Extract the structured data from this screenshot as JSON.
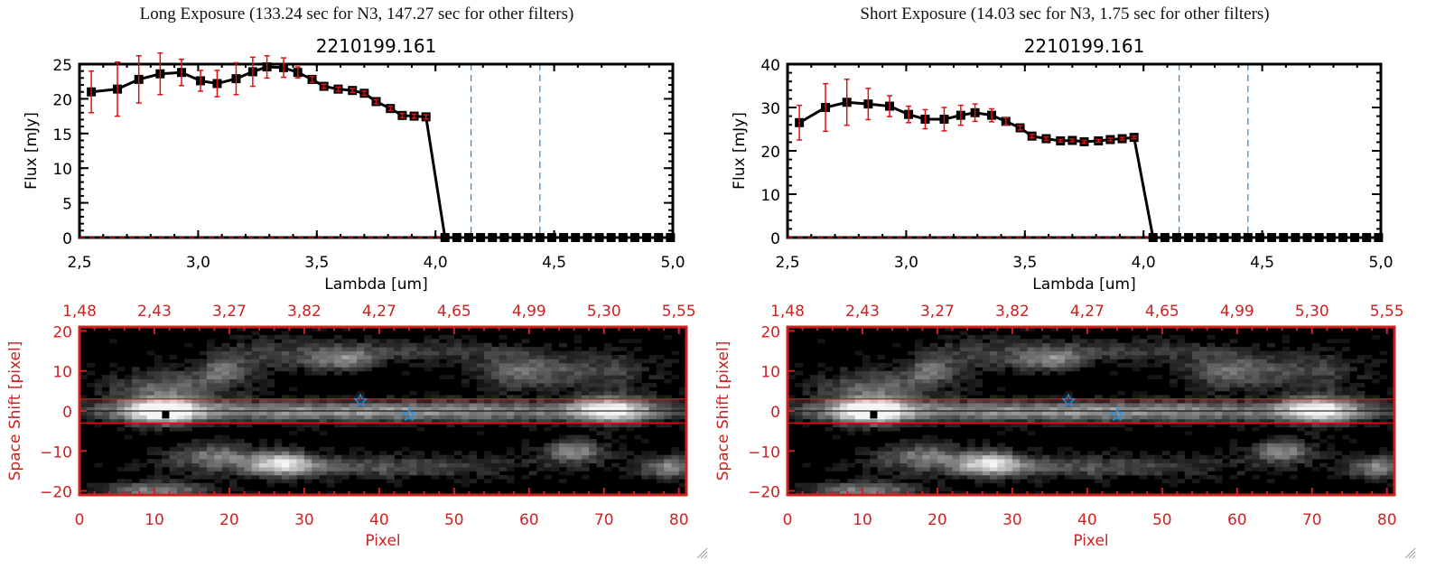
{
  "panels": [
    {
      "exposure_title": "Long Exposure (133.24 sec for N3, 147.27 sec for other filters)",
      "chart_data": [
        {
          "type": "line",
          "title": "2210199.161",
          "xlabel": "Lambda [um]",
          "ylabel": "Flux [mJy]",
          "xlim": [
            2.5,
            5.0
          ],
          "ylim": [
            0,
            25
          ],
          "xticks": [
            2.5,
            3.0,
            3.5,
            4.0,
            4.5,
            5.0
          ],
          "xtick_labels": [
            "2,5",
            "3,0",
            "3,5",
            "4,0",
            "4,5",
            "5,0"
          ],
          "yticks": [
            0,
            5,
            10,
            15,
            20,
            25
          ],
          "ytick_labels": [
            "0",
            "5",
            "10",
            "15",
            "20",
            "25"
          ],
          "series": [
            {
              "name": "flux",
              "x": [
                2.55,
                2.66,
                2.75,
                2.84,
                2.93,
                3.01,
                3.08,
                3.16,
                3.23,
                3.29,
                3.36,
                3.42,
                3.48,
                3.53,
                3.59,
                3.65,
                3.7,
                3.75,
                3.81,
                3.86,
                3.91,
                3.96,
                4.04,
                4.09,
                4.14,
                4.19,
                4.24,
                4.29,
                4.34,
                4.39,
                4.44,
                4.49,
                4.54,
                4.59,
                4.64,
                4.69,
                4.74,
                4.79,
                4.84,
                4.89,
                4.94,
                4.99
              ],
              "y": [
                21.0,
                21.4,
                22.8,
                23.6,
                23.8,
                22.6,
                22.2,
                22.9,
                23.9,
                24.6,
                24.5,
                23.8,
                22.8,
                21.8,
                21.4,
                21.2,
                20.8,
                19.6,
                18.6,
                17.6,
                17.5,
                17.4,
                0,
                0,
                0,
                0,
                0,
                0,
                0,
                0,
                0,
                0,
                0,
                0,
                0,
                0,
                0,
                0,
                0,
                0,
                0,
                0
              ],
              "yerr": [
                3.0,
                3.9,
                3.4,
                3.0,
                1.9,
                1.5,
                1.9,
                2.3,
                2.1,
                1.6,
                1.4,
                0.8,
                0.4,
                0.3,
                0.3,
                0.3,
                0.3,
                0.3,
                0.3,
                0.3,
                0.3,
                0.3,
                0,
                0,
                0,
                0,
                0,
                0,
                0,
                0,
                0,
                0,
                0,
                0,
                0,
                0,
                0,
                0,
                0,
                0,
                0,
                0
              ]
            }
          ],
          "vlines": [
            4.15,
            4.44
          ],
          "hline": 0,
          "colors": {
            "line": "#000000",
            "errorbar": "#e01010",
            "vline": "#2b8fe0",
            "hline": "#e01010"
          }
        },
        {
          "type": "heatmap",
          "xlabel": "Pixel",
          "ylabel": "Space Shift [pixel]",
          "xlim": [
            0,
            81
          ],
          "ylim": [
            -21,
            21
          ],
          "xticks": [
            0,
            10,
            20,
            30,
            40,
            50,
            60,
            70,
            80
          ],
          "xtick_labels": [
            "0",
            "10",
            "20",
            "30",
            "40",
            "50",
            "60",
            "70",
            "80"
          ],
          "yticks": [
            -20,
            -10,
            0,
            10,
            20
          ],
          "ytick_labels": [
            "−20",
            "−10",
            "0",
            "10",
            "20"
          ],
          "top_tick_labels": [
            "1,48",
            "2,43",
            "3,27",
            "3,82",
            "4,27",
            "4,65",
            "4,99",
            "5,30",
            "5,55"
          ],
          "aperture_lines": [
            3,
            -3
          ],
          "center_line": 0,
          "peak_marker": [
            11.5,
            -1
          ],
          "stars": [
            [
              37.5,
              2.5
            ],
            [
              44,
              -1
            ]
          ],
          "colors": {
            "axis": "#cc2222",
            "aperture": "#e01010",
            "star": "#2b8fe0"
          }
        }
      ]
    },
    {
      "exposure_title": "Short Exposure (14.03 sec for N3, 1.75 sec for other filters)",
      "chart_data": [
        {
          "type": "line",
          "title": "2210199.161",
          "xlabel": "Lambda [um]",
          "ylabel": "Flux [mJy]",
          "xlim": [
            2.5,
            5.0
          ],
          "ylim": [
            0,
            40
          ],
          "xticks": [
            2.5,
            3.0,
            3.5,
            4.0,
            4.5,
            5.0
          ],
          "xtick_labels": [
            "2,5",
            "3,0",
            "3,5",
            "4,0",
            "4,5",
            "5,0"
          ],
          "yticks": [
            0,
            10,
            20,
            30,
            40
          ],
          "ytick_labels": [
            "0",
            "10",
            "20",
            "30",
            "40"
          ],
          "series": [
            {
              "name": "flux",
              "x": [
                2.55,
                2.66,
                2.75,
                2.84,
                2.93,
                3.01,
                3.08,
                3.16,
                3.23,
                3.29,
                3.36,
                3.42,
                3.48,
                3.53,
                3.59,
                3.65,
                3.7,
                3.75,
                3.81,
                3.86,
                3.91,
                3.96,
                4.04,
                4.09,
                4.14,
                4.19,
                4.24,
                4.29,
                4.34,
                4.39,
                4.44,
                4.49,
                4.54,
                4.59,
                4.64,
                4.69,
                4.74,
                4.79,
                4.84,
                4.89,
                4.94,
                4.99
              ],
              "y": [
                26.5,
                30.0,
                31.2,
                30.8,
                30.3,
                28.4,
                27.3,
                27.3,
                28.2,
                28.8,
                28.2,
                26.8,
                25.3,
                23.4,
                22.8,
                22.3,
                22.4,
                22.1,
                22.3,
                22.6,
                22.8,
                23.1,
                0,
                0,
                0,
                0,
                0,
                0,
                0,
                0,
                0,
                0,
                0,
                0,
                0,
                0,
                0,
                0,
                0,
                0,
                0,
                0
              ],
              "yerr": [
                4.0,
                5.5,
                5.3,
                3.6,
                2.4,
                1.9,
                2.2,
                2.7,
                2.3,
                2.0,
                1.5,
                0.8,
                0.5,
                0.4,
                0.4,
                0.3,
                0.3,
                0.3,
                0.3,
                0.3,
                0.3,
                0.3,
                0,
                0,
                0,
                0,
                0,
                0,
                0,
                0,
                0,
                0,
                0,
                0,
                0,
                0,
                0,
                0,
                0,
                0,
                0,
                0
              ]
            }
          ],
          "vlines": [
            4.15,
            4.44
          ],
          "hline": 0,
          "colors": {
            "line": "#000000",
            "errorbar": "#e01010",
            "vline": "#2b8fe0",
            "hline": "#e01010"
          }
        },
        {
          "type": "heatmap",
          "xlabel": "Pixel",
          "ylabel": "Space Shift [pixel]",
          "xlim": [
            0,
            81
          ],
          "ylim": [
            -21,
            21
          ],
          "xticks": [
            0,
            10,
            20,
            30,
            40,
            50,
            60,
            70,
            80
          ],
          "xtick_labels": [
            "0",
            "10",
            "20",
            "30",
            "40",
            "50",
            "60",
            "70",
            "80"
          ],
          "yticks": [
            -20,
            -10,
            0,
            10,
            20
          ],
          "ytick_labels": [
            "−20",
            "−10",
            "0",
            "10",
            "20"
          ],
          "top_tick_labels": [
            "1,48",
            "2,43",
            "3,27",
            "3,82",
            "4,27",
            "4,65",
            "4,99",
            "5,30",
            "5,55"
          ],
          "aperture_lines": [
            3,
            -3
          ],
          "center_line": 0,
          "peak_marker": [
            11.5,
            -1
          ],
          "stars": [
            [
              37.5,
              2.5
            ],
            [
              44,
              -1
            ]
          ],
          "colors": {
            "axis": "#cc2222",
            "aperture": "#e01010",
            "star": "#2b8fe0"
          }
        }
      ]
    }
  ],
  "icons": {
    "resize_grip": "resize-grip-icon"
  }
}
